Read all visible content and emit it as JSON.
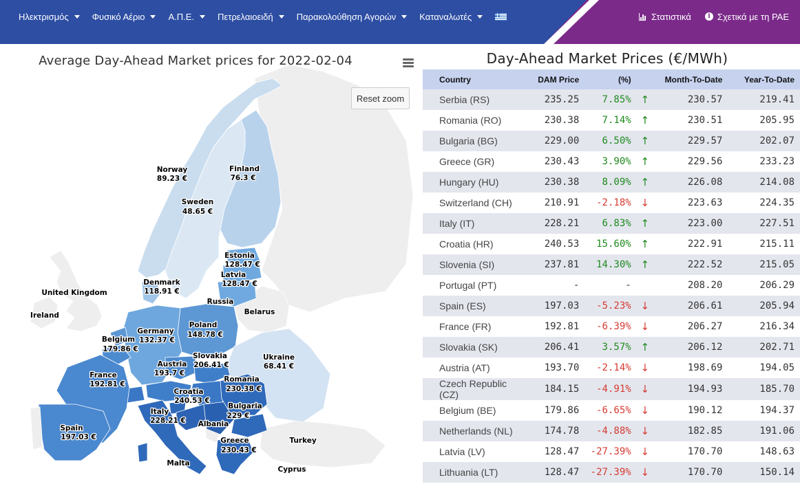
{
  "nav": {
    "items": [
      {
        "label": "Ηλεκτρισμός"
      },
      {
        "label": "Φυσικό Αέριο"
      },
      {
        "label": "Α.Π.Ε."
      },
      {
        "label": "Πετρελαιοειδή"
      },
      {
        "label": "Παρακολούθηση Αγορών"
      },
      {
        "label": "Καταναλωτές"
      }
    ],
    "statistics_label": "Στατιστικά",
    "about_label": "Σχετικά με τη ΡΑΕ",
    "colors": {
      "primary": "#2d4ea3",
      "accent": "#7b2a8a"
    }
  },
  "map": {
    "title": "Average Day-Ahead Market prices for 2022-02-04",
    "reset_zoom_label": "Reset zoom",
    "countries": {
      "norway": {
        "name": "Norway",
        "value": "89.23 €"
      },
      "finland": {
        "name": "Finland",
        "value": "76.3 €"
      },
      "sweden": {
        "name": "Sweden",
        "value": "48.65 €"
      },
      "estonia": {
        "name": "Estonia",
        "value": "128.47 €"
      },
      "latvia": {
        "name": "Latvia",
        "value": "128.47 €"
      },
      "denmark": {
        "name": "Denmark",
        "value": "118.91 €"
      },
      "uk": {
        "name": "United Kingdom"
      },
      "ireland": {
        "name": "Ireland"
      },
      "russia": {
        "name": "Russia"
      },
      "belarus": {
        "name": "Belarus"
      },
      "poland": {
        "name": "Poland",
        "value": "148.78 €"
      },
      "germany": {
        "name": "Germany",
        "value": "132.37 €"
      },
      "belgium": {
        "name": "Belgium",
        "value": "179.86 €"
      },
      "slovakia": {
        "name": "Slovakia",
        "value": "206.41 €"
      },
      "ukraine": {
        "name": "Ukraine",
        "value": "68.41 €"
      },
      "austria": {
        "name": "Austria",
        "value": "193.7 €"
      },
      "france": {
        "name": "France",
        "value": "192.81 €"
      },
      "romania": {
        "name": "Romania",
        "value": "230.38 €"
      },
      "croatia": {
        "name": "Croatia",
        "value": "240.53 €"
      },
      "bulgaria": {
        "name": "Bulgaria",
        "value": "229 €"
      },
      "italy": {
        "name": "Italy",
        "value": "228.21 €"
      },
      "albania": {
        "name": "Albania"
      },
      "spain": {
        "name": "Spain",
        "value": "197.03 €"
      },
      "greece": {
        "name": "Greece",
        "value": "230.43 €"
      },
      "turkey": {
        "name": "Turkey"
      },
      "malta": {
        "name": "Malta"
      },
      "cyprus": {
        "name": "Cyprus"
      }
    }
  },
  "table": {
    "title": "Day-Ahead Market Prices (€/MWh)",
    "headers": {
      "country": "Country",
      "dam_price": "DAM Price",
      "pct": "(%)",
      "mtd": "Month-To-Date",
      "ytd": "Year-To-Date"
    },
    "rows": [
      {
        "country": "Serbia (RS)",
        "price": "235.25",
        "pct": "7.85%",
        "dir": "up",
        "mtd": "230.57",
        "ytd": "219.41"
      },
      {
        "country": "Romania (RO)",
        "price": "230.38",
        "pct": "7.14%",
        "dir": "up",
        "mtd": "230.51",
        "ytd": "205.95"
      },
      {
        "country": "Bulgaria (BG)",
        "price": "229.00",
        "pct": "6.50%",
        "dir": "up",
        "mtd": "229.57",
        "ytd": "202.07"
      },
      {
        "country": "Greece (GR)",
        "price": "230.43",
        "pct": "3.90%",
        "dir": "up",
        "mtd": "229.56",
        "ytd": "233.23"
      },
      {
        "country": "Hungary (HU)",
        "price": "230.38",
        "pct": "8.09%",
        "dir": "up",
        "mtd": "226.08",
        "ytd": "214.08"
      },
      {
        "country": "Switzerland (CH)",
        "price": "210.91",
        "pct": "-2.18%",
        "dir": "down",
        "mtd": "223.63",
        "ytd": "224.35"
      },
      {
        "country": "Italy (IT)",
        "price": "228.21",
        "pct": "6.83%",
        "dir": "up",
        "mtd": "223.00",
        "ytd": "227.51"
      },
      {
        "country": "Croatia (HR)",
        "price": "240.53",
        "pct": "15.60%",
        "dir": "up",
        "mtd": "222.91",
        "ytd": "215.11"
      },
      {
        "country": "Slovenia (SI)",
        "price": "237.81",
        "pct": "14.30%",
        "dir": "up",
        "mtd": "222.52",
        "ytd": "215.05"
      },
      {
        "country": "Portugal (PT)",
        "price": "-",
        "pct": "-",
        "dir": "none",
        "mtd": "208.20",
        "ytd": "206.29"
      },
      {
        "country": "Spain (ES)",
        "price": "197.03",
        "pct": "-5.23%",
        "dir": "down",
        "mtd": "206.61",
        "ytd": "205.94"
      },
      {
        "country": "France (FR)",
        "price": "192.81",
        "pct": "-6.39%",
        "dir": "down",
        "mtd": "206.27",
        "ytd": "216.34"
      },
      {
        "country": "Slovakia (SK)",
        "price": "206.41",
        "pct": "3.57%",
        "dir": "up",
        "mtd": "206.12",
        "ytd": "202.71"
      },
      {
        "country": "Austria (AT)",
        "price": "193.70",
        "pct": "-2.14%",
        "dir": "down",
        "mtd": "198.69",
        "ytd": "194.05"
      },
      {
        "country": "Czech Republic (CZ)",
        "price": "184.15",
        "pct": "-4.91%",
        "dir": "down",
        "mtd": "194.93",
        "ytd": "185.70"
      },
      {
        "country": "Belgium (BE)",
        "price": "179.86",
        "pct": "-6.65%",
        "dir": "down",
        "mtd": "190.12",
        "ytd": "194.37"
      },
      {
        "country": "Netherlands (NL)",
        "price": "174.78",
        "pct": "-4.88%",
        "dir": "down",
        "mtd": "182.85",
        "ytd": "191.06"
      },
      {
        "country": "Latvia (LV)",
        "price": "128.47",
        "pct": "-27.39%",
        "dir": "down",
        "mtd": "170.70",
        "ytd": "148.63"
      },
      {
        "country": "Lithuania (LT)",
        "price": "128.47",
        "pct": "-27.39%",
        "dir": "down",
        "mtd": "170.70",
        "ytd": "150.14"
      }
    ],
    "colors": {
      "up": "#1e8a1e",
      "down": "#d53a30",
      "header_bg": "#c7d2ef",
      "stripe": "#e4e6ee"
    }
  }
}
